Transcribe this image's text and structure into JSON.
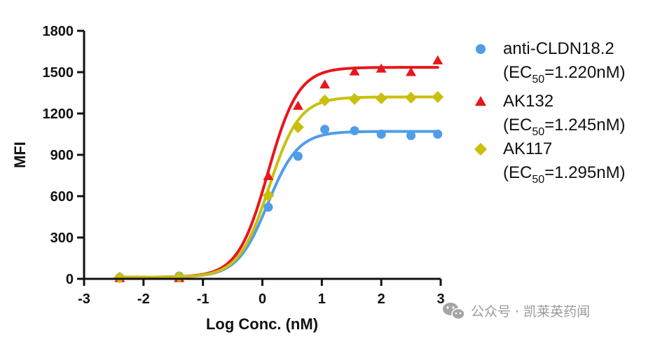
{
  "chart_data": {
    "type": "scatter",
    "xlabel": "Log Conc. (nM)",
    "ylabel": "MFI",
    "xlim": [
      -3,
      3
    ],
    "ylim": [
      0,
      1800
    ],
    "xticks": [
      "-3",
      "-2",
      "-1",
      "0",
      "1",
      "2",
      "3"
    ],
    "yticks": [
      "0",
      "300",
      "600",
      "900",
      "1200",
      "1500",
      "1800"
    ],
    "legend_position": "right",
    "series": [
      {
        "name": "anti-CLDN18.2",
        "ec50_text_a": "(EC",
        "ec50_sub": "50",
        "ec50_text_b": "=1.220nM)",
        "marker": "circle",
        "color": "#4f9de8",
        "fit": {
          "bottom": 12,
          "top": 1070,
          "log_ec50": 0.0864,
          "hill": 1.7
        },
        "x": [
          -2.4,
          -1.4,
          0.1,
          0.6,
          1.05,
          1.55,
          2.0,
          2.5,
          2.95
        ],
        "y": [
          10,
          20,
          520,
          890,
          1085,
          1075,
          1050,
          1040,
          1050
        ]
      },
      {
        "name": "AK132",
        "ec50_text_a": "(EC",
        "ec50_sub": "50",
        "ec50_text_b": "=1.245nM)",
        "marker": "triangle",
        "color": "#e8161b",
        "fit": {
          "bottom": 12,
          "top": 1535,
          "log_ec50": 0.0952,
          "hill": 1.7
        },
        "x": [
          -2.4,
          -1.4,
          0.1,
          0.6,
          1.05,
          1.55,
          2.0,
          2.5,
          2.95
        ],
        "y": [
          5,
          5,
          745,
          1255,
          1410,
          1505,
          1525,
          1500,
          1585
        ]
      },
      {
        "name": "AK117",
        "ec50_text_a": "(EC",
        "ec50_sub": "50",
        "ec50_text_b": "=1.295nM)",
        "marker": "diamond",
        "color": "#c9c00e",
        "fit": {
          "bottom": 12,
          "top": 1320,
          "log_ec50": 0.1123,
          "hill": 1.7
        },
        "x": [
          -2.4,
          -1.4,
          0.1,
          0.6,
          1.05,
          1.55,
          2.0,
          2.5,
          2.95
        ],
        "y": [
          10,
          15,
          605,
          1100,
          1295,
          1305,
          1310,
          1315,
          1320
        ]
      }
    ]
  },
  "watermark": {
    "text": "公众号 · 凯莱英药闻",
    "icon": "wechat-icon"
  }
}
